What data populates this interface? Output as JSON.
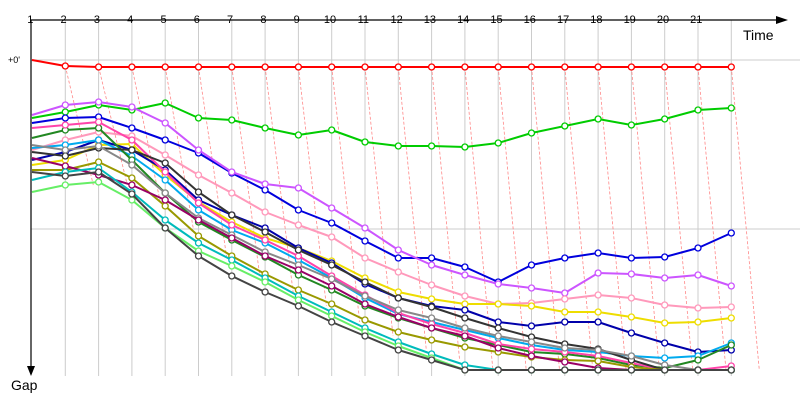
{
  "chart_data": {
    "type": "line",
    "x_axis_title": "Time",
    "y_axis_title": "Gap",
    "zero_gap_label": "+0'",
    "lap_labels": [
      "1",
      "2",
      "3",
      "4",
      "5",
      "6",
      "7",
      "8",
      "9",
      "10",
      "11",
      "12",
      "13",
      "14",
      "15",
      "16",
      "17",
      "18",
      "19",
      "20",
      "21"
    ],
    "laps": 22,
    "grid": true,
    "series": [
      {
        "color": "#ff0000",
        "gaps": [
          0,
          6,
          7,
          7,
          7,
          7,
          7,
          7,
          7,
          7,
          7,
          7,
          7,
          7,
          7,
          7,
          7,
          7,
          7,
          7,
          7,
          7
        ]
      },
      {
        "color": "#00cc00",
        "gaps": [
          58,
          52,
          45,
          50,
          43,
          58,
          60,
          68,
          75,
          70,
          82,
          86,
          86,
          87,
          83,
          73,
          66,
          59,
          65,
          59,
          50,
          48
        ]
      },
      {
        "color": "#0000dd",
        "gaps": [
          63,
          58,
          57,
          68,
          80,
          93,
          113,
          130,
          150,
          163,
          181,
          198,
          198,
          207,
          222,
          205,
          198,
          193,
          198,
          197,
          188,
          173
        ]
      },
      {
        "color": "#cc55ff",
        "gaps": [
          55,
          45,
          42,
          47,
          63,
          90,
          112,
          124,
          128,
          148,
          168,
          190,
          205,
          215,
          224,
          228,
          233,
          213,
          214,
          218,
          215,
          226
        ]
      },
      {
        "color": "#ff99bb",
        "gaps": [
          90,
          80,
          72,
          76,
          95,
          115,
          133,
          152,
          165,
          177,
          198,
          212,
          225,
          236,
          244,
          243,
          239,
          235,
          238,
          245,
          248,
          247
        ]
      },
      {
        "color": "#eedd00",
        "gaps": [
          105,
          100,
          85,
          84,
          115,
          142,
          162,
          178,
          188,
          201,
          218,
          232,
          239,
          244,
          244,
          246,
          252,
          252,
          257,
          263,
          262,
          258
        ]
      },
      {
        "color": "#0000aa",
        "gaps": [
          100,
          92,
          80,
          90,
          110,
          140,
          155,
          168,
          188,
          203,
          224,
          238,
          246,
          250,
          262,
          266,
          262,
          262,
          273,
          283,
          292,
          290
        ]
      },
      {
        "color": "#00aaee",
        "gaps": [
          88,
          85,
          80,
          96,
          120,
          150,
          170,
          183,
          200,
          218,
          238,
          254,
          262,
          270,
          278,
          285,
          290,
          292,
          296,
          298,
          296,
          283
        ]
      },
      {
        "color": "#228822",
        "gaps": [
          78,
          70,
          68,
          100,
          133,
          162,
          180,
          197,
          215,
          230,
          246,
          258,
          268,
          278,
          285,
          292,
          294,
          298,
          305,
          308,
          300,
          285
        ]
      },
      {
        "color": "#ff44aa",
        "gaps": [
          68,
          65,
          62,
          80,
          112,
          143,
          165,
          180,
          196,
          216,
          235,
          253,
          264,
          273,
          284,
          289,
          292,
          296,
          303,
          310,
          316,
          306
        ]
      },
      {
        "color": "#333333",
        "gaps": [
          92,
          96,
          88,
          90,
          103,
          132,
          155,
          172,
          190,
          205,
          222,
          238,
          247,
          258,
          268,
          277,
          284,
          289,
          300,
          312,
          326,
          320
        ]
      },
      {
        "color": "#999900",
        "gaps": [
          110,
          110,
          102,
          118,
          146,
          176,
          196,
          214,
          230,
          244,
          260,
          272,
          280,
          287,
          292,
          297,
          300,
          301,
          307,
          315,
          318,
          310
        ]
      },
      {
        "color": "#888888",
        "gaps": [
          85,
          90,
          86,
          105,
          133,
          158,
          175,
          192,
          205,
          219,
          236,
          250,
          258,
          268,
          276,
          282,
          288,
          290,
          296,
          305,
          318,
          330
        ]
      },
      {
        "color": "#990066",
        "gaps": [
          98,
          106,
          115,
          125,
          140,
          160,
          178,
          196,
          210,
          226,
          244,
          257,
          268,
          276,
          288,
          296,
          302,
          308,
          318,
          326,
          335,
          338
        ]
      },
      {
        "color": "#00bbbb",
        "gaps": [
          120,
          112,
          108,
          132,
          160,
          183,
          200,
          218,
          236,
          252,
          268,
          282,
          294,
          305,
          315,
          320,
          326,
          330,
          336,
          342,
          345,
          348
        ]
      },
      {
        "color": "#66ee66",
        "gaps": [
          132,
          125,
          122,
          140,
          168,
          191,
          206,
          222,
          240,
          256,
          272,
          286,
          298,
          310,
          322,
          325,
          330,
          332,
          336,
          342,
          350,
          353
        ]
      },
      {
        "color": "#444444",
        "gaps": [
          112,
          116,
          112,
          134,
          168,
          196,
          216,
          232,
          246,
          262,
          276,
          290,
          300,
          312,
          322,
          327,
          334,
          337,
          344,
          350,
          356,
          360
        ]
      }
    ]
  }
}
